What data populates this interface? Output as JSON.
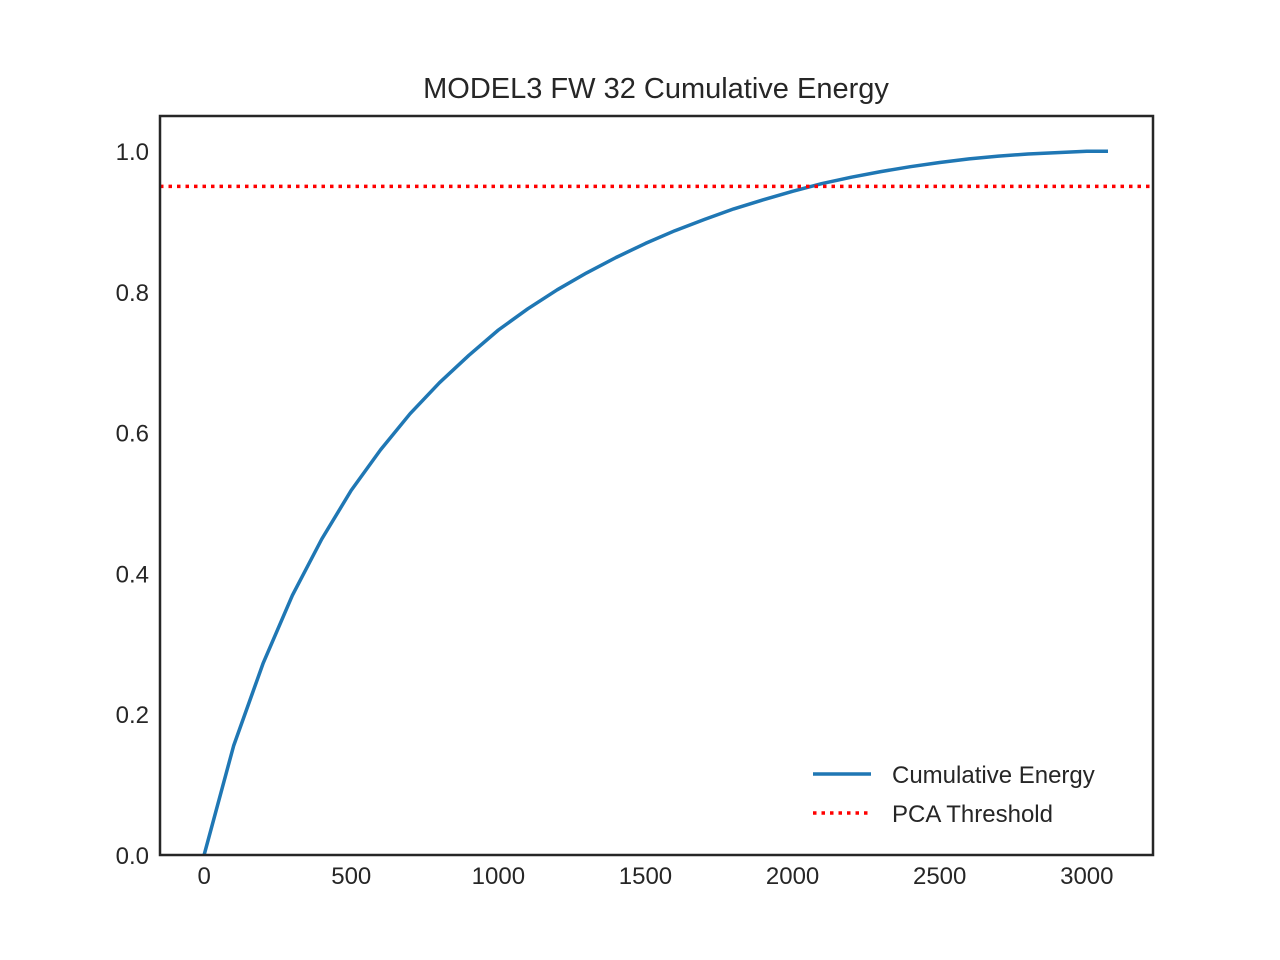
{
  "chart_data": {
    "type": "line",
    "title": "MODEL3 FW 32 Cumulative Energy",
    "xlabel": "",
    "ylabel": "",
    "xlim": [
      -150,
      3225
    ],
    "ylim": [
      0.0,
      1.05
    ],
    "xticks": [
      0,
      500,
      1000,
      1500,
      2000,
      2500,
      3000
    ],
    "xtick_labels": [
      "0",
      "500",
      "1000",
      "1500",
      "2000",
      "2500",
      "3000"
    ],
    "yticks": [
      0.0,
      0.2,
      0.4,
      0.6,
      0.8,
      1.0
    ],
    "ytick_labels": [
      "0.0",
      "0.2",
      "0.4",
      "0.6",
      "0.8",
      "1.0"
    ],
    "grid": false,
    "legend_position": "bottom-right",
    "series": [
      {
        "name": "Cumulative Energy",
        "color": "#1f77b4",
        "style": "solid",
        "x": [
          0,
          100,
          200,
          300,
          400,
          500,
          600,
          700,
          800,
          900,
          1000,
          1100,
          1200,
          1300,
          1400,
          1500,
          1600,
          1700,
          1800,
          1900,
          2000,
          2100,
          2200,
          2300,
          2400,
          2500,
          2600,
          2700,
          2800,
          2900,
          3000,
          3072
        ],
        "y": [
          0.0,
          0.155,
          0.272,
          0.369,
          0.449,
          0.518,
          0.576,
          0.627,
          0.671,
          0.71,
          0.746,
          0.776,
          0.803,
          0.827,
          0.849,
          0.869,
          0.887,
          0.903,
          0.918,
          0.931,
          0.943,
          0.954,
          0.963,
          0.971,
          0.978,
          0.984,
          0.989,
          0.993,
          0.996,
          0.998,
          1.0,
          1.0
        ]
      },
      {
        "name": "PCA Threshold",
        "color": "#ff0000",
        "style": "dotted",
        "x": [
          -150,
          3225
        ],
        "y": [
          0.95,
          0.95
        ]
      }
    ]
  }
}
